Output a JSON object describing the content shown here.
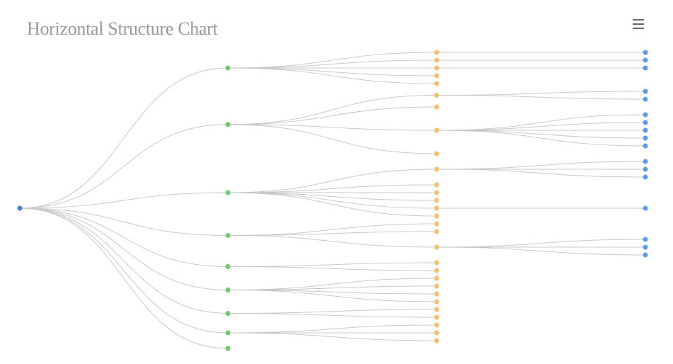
{
  "header": {
    "title": "Horizontal Structure Chart",
    "menu_icon": "hamburger-menu-icon"
  },
  "colors": {
    "link": "#c8c8c8",
    "level0": "#3f7fe0",
    "level1": "#6cc96e",
    "level2": "#f5c16b",
    "level3": "#5b9ee6"
  },
  "chart_data": {
    "type": "tree",
    "orientation": "horizontal",
    "root": {
      "children": [
        {
          "children": [
            {
              "children": [
                {}
              ]
            },
            {
              "children": [
                {}
              ]
            },
            {
              "children": [
                {}
              ]
            },
            {},
            {}
          ]
        },
        {
          "children": [
            {
              "children": [
                {},
                {}
              ]
            },
            {},
            {
              "children": [
                {},
                {},
                {},
                {},
                {}
              ]
            },
            {}
          ]
        },
        {
          "children": [
            {
              "children": [
                {},
                {},
                {}
              ]
            },
            {},
            {},
            {},
            {
              "children": [
                {}
              ]
            },
            {}
          ]
        },
        {
          "children": [
            {},
            {},
            {
              "children": [
                {},
                {},
                {}
              ]
            }
          ]
        },
        {
          "children": [
            {},
            {}
          ]
        },
        {
          "children": [
            {},
            {},
            {},
            {}
          ]
        },
        {
          "children": [
            {},
            {}
          ]
        },
        {
          "children": [
            {},
            {},
            {}
          ]
        },
        {}
      ]
    }
  }
}
